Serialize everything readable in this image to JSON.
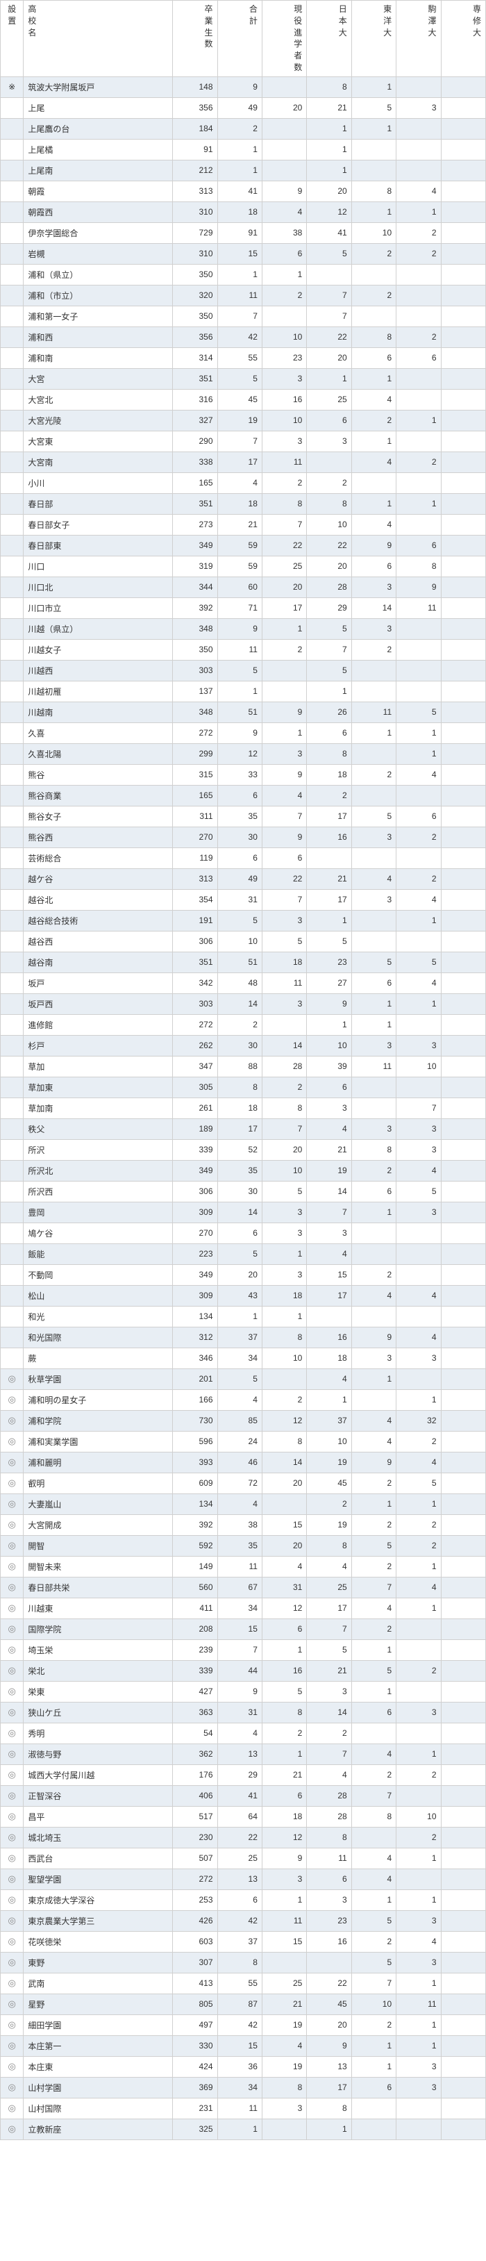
{
  "headers": [
    "設置",
    "高校名",
    "卒業生数",
    "合計",
    "現役進学者数",
    "日本大",
    "東洋大",
    "駒澤大",
    "専修大"
  ],
  "header_vertical": [
    [
      "設",
      "置"
    ],
    [
      "高",
      "校",
      "名"
    ],
    [
      "卒",
      "業",
      "生",
      "数"
    ],
    [
      "合",
      "計"
    ],
    [
      "現",
      "役",
      "進",
      "学",
      "者",
      "数"
    ],
    [
      "日",
      "本",
      "大"
    ],
    [
      "東",
      "洋",
      "大"
    ],
    [
      "駒",
      "澤",
      "大"
    ],
    [
      "専",
      "修",
      "大"
    ]
  ],
  "rows": [
    {
      "mark": "※",
      "name": "筑波大学附属坂戸",
      "grad": 148,
      "total": 9,
      "gen": "",
      "d1": 8,
      "d2": 1,
      "d3": "",
      "d4": ""
    },
    {
      "mark": "",
      "name": "上尾",
      "grad": 356,
      "total": 49,
      "gen": 20,
      "d1": 21,
      "d2": 5,
      "d3": 3,
      "d4": ""
    },
    {
      "mark": "",
      "name": "上尾鷹の台",
      "grad": 184,
      "total": 2,
      "gen": "",
      "d1": 1,
      "d2": 1,
      "d3": "",
      "d4": ""
    },
    {
      "mark": "",
      "name": "上尾橘",
      "grad": 91,
      "total": 1,
      "gen": "",
      "d1": 1,
      "d2": "",
      "d3": "",
      "d4": ""
    },
    {
      "mark": "",
      "name": "上尾南",
      "grad": 212,
      "total": 1,
      "gen": "",
      "d1": 1,
      "d2": "",
      "d3": "",
      "d4": ""
    },
    {
      "mark": "",
      "name": "朝霞",
      "grad": 313,
      "total": 41,
      "gen": 9,
      "d1": 20,
      "d2": 8,
      "d3": 4,
      "d4": ""
    },
    {
      "mark": "",
      "name": "朝霞西",
      "grad": 310,
      "total": 18,
      "gen": 4,
      "d1": 12,
      "d2": 1,
      "d3": 1,
      "d4": ""
    },
    {
      "mark": "",
      "name": "伊奈学園総合",
      "grad": 729,
      "total": 91,
      "gen": 38,
      "d1": 41,
      "d2": 10,
      "d3": 2,
      "d4": ""
    },
    {
      "mark": "",
      "name": "岩槻",
      "grad": 310,
      "total": 15,
      "gen": 6,
      "d1": 5,
      "d2": 2,
      "d3": 2,
      "d4": ""
    },
    {
      "mark": "",
      "name": "浦和（県立）",
      "grad": 350,
      "total": 1,
      "gen": 1,
      "d1": "",
      "d2": "",
      "d3": "",
      "d4": ""
    },
    {
      "mark": "",
      "name": "浦和（市立）",
      "grad": 320,
      "total": 11,
      "gen": 2,
      "d1": 7,
      "d2": 2,
      "d3": "",
      "d4": ""
    },
    {
      "mark": "",
      "name": "浦和第一女子",
      "grad": 350,
      "total": 7,
      "gen": "",
      "d1": 7,
      "d2": "",
      "d3": "",
      "d4": ""
    },
    {
      "mark": "",
      "name": "浦和西",
      "grad": 356,
      "total": 42,
      "gen": 10,
      "d1": 22,
      "d2": 8,
      "d3": 2,
      "d4": ""
    },
    {
      "mark": "",
      "name": "浦和南",
      "grad": 314,
      "total": 55,
      "gen": 23,
      "d1": 20,
      "d2": 6,
      "d3": 6,
      "d4": ""
    },
    {
      "mark": "",
      "name": "大宮",
      "grad": 351,
      "total": 5,
      "gen": 3,
      "d1": 1,
      "d2": 1,
      "d3": "",
      "d4": ""
    },
    {
      "mark": "",
      "name": "大宮北",
      "grad": 316,
      "total": 45,
      "gen": 16,
      "d1": 25,
      "d2": 4,
      "d3": "",
      "d4": ""
    },
    {
      "mark": "",
      "name": "大宮光陵",
      "grad": 327,
      "total": 19,
      "gen": 10,
      "d1": 6,
      "d2": 2,
      "d3": 1,
      "d4": ""
    },
    {
      "mark": "",
      "name": "大宮東",
      "grad": 290,
      "total": 7,
      "gen": 3,
      "d1": 3,
      "d2": 1,
      "d3": "",
      "d4": ""
    },
    {
      "mark": "",
      "name": "大宮南",
      "grad": 338,
      "total": 17,
      "gen": 11,
      "d1": "",
      "d2": 4,
      "d3": 2,
      "d4": ""
    },
    {
      "mark": "",
      "name": "小川",
      "grad": 165,
      "total": 4,
      "gen": 2,
      "d1": 2,
      "d2": "",
      "d3": "",
      "d4": ""
    },
    {
      "mark": "",
      "name": "春日部",
      "grad": 351,
      "total": 18,
      "gen": 8,
      "d1": 8,
      "d2": 1,
      "d3": 1,
      "d4": ""
    },
    {
      "mark": "",
      "name": "春日部女子",
      "grad": 273,
      "total": 21,
      "gen": 7,
      "d1": 10,
      "d2": 4,
      "d3": "",
      "d4": ""
    },
    {
      "mark": "",
      "name": "春日部東",
      "grad": 349,
      "total": 59,
      "gen": 22,
      "d1": 22,
      "d2": 9,
      "d3": 6,
      "d4": ""
    },
    {
      "mark": "",
      "name": "川口",
      "grad": 319,
      "total": 59,
      "gen": 25,
      "d1": 20,
      "d2": 6,
      "d3": 8,
      "d4": ""
    },
    {
      "mark": "",
      "name": "川口北",
      "grad": 344,
      "total": 60,
      "gen": 20,
      "d1": 28,
      "d2": 3,
      "d3": 9,
      "d4": ""
    },
    {
      "mark": "",
      "name": "川口市立",
      "grad": 392,
      "total": 71,
      "gen": 17,
      "d1": 29,
      "d2": 14,
      "d3": 11,
      "d4": ""
    },
    {
      "mark": "",
      "name": "川越（県立）",
      "grad": 348,
      "total": 9,
      "gen": 1,
      "d1": 5,
      "d2": 3,
      "d3": "",
      "d4": ""
    },
    {
      "mark": "",
      "name": "川越女子",
      "grad": 350,
      "total": 11,
      "gen": 2,
      "d1": 7,
      "d2": 2,
      "d3": "",
      "d4": ""
    },
    {
      "mark": "",
      "name": "川越西",
      "grad": 303,
      "total": 5,
      "gen": "",
      "d1": 5,
      "d2": "",
      "d3": "",
      "d4": ""
    },
    {
      "mark": "",
      "name": "川越初雁",
      "grad": 137,
      "total": 1,
      "gen": "",
      "d1": 1,
      "d2": "",
      "d3": "",
      "d4": ""
    },
    {
      "mark": "",
      "name": "川越南",
      "grad": 348,
      "total": 51,
      "gen": 9,
      "d1": 26,
      "d2": 11,
      "d3": 5,
      "d4": ""
    },
    {
      "mark": "",
      "name": "久喜",
      "grad": 272,
      "total": 9,
      "gen": 1,
      "d1": 6,
      "d2": 1,
      "d3": 1,
      "d4": ""
    },
    {
      "mark": "",
      "name": "久喜北陽",
      "grad": 299,
      "total": 12,
      "gen": 3,
      "d1": 8,
      "d2": "",
      "d3": 1,
      "d4": ""
    },
    {
      "mark": "",
      "name": "熊谷",
      "grad": 315,
      "total": 33,
      "gen": 9,
      "d1": 18,
      "d2": 2,
      "d3": 4,
      "d4": ""
    },
    {
      "mark": "",
      "name": "熊谷商業",
      "grad": 165,
      "total": 6,
      "gen": 4,
      "d1": 2,
      "d2": "",
      "d3": "",
      "d4": ""
    },
    {
      "mark": "",
      "name": "熊谷女子",
      "grad": 311,
      "total": 35,
      "gen": 7,
      "d1": 17,
      "d2": 5,
      "d3": 6,
      "d4": ""
    },
    {
      "mark": "",
      "name": "熊谷西",
      "grad": 270,
      "total": 30,
      "gen": 9,
      "d1": 16,
      "d2": 3,
      "d3": 2,
      "d4": ""
    },
    {
      "mark": "",
      "name": "芸術総合",
      "grad": 119,
      "total": 6,
      "gen": 6,
      "d1": "",
      "d2": "",
      "d3": "",
      "d4": ""
    },
    {
      "mark": "",
      "name": "越ケ谷",
      "grad": 313,
      "total": 49,
      "gen": 22,
      "d1": 21,
      "d2": 4,
      "d3": 2,
      "d4": ""
    },
    {
      "mark": "",
      "name": "越谷北",
      "grad": 354,
      "total": 31,
      "gen": 7,
      "d1": 17,
      "d2": 3,
      "d3": 4,
      "d4": ""
    },
    {
      "mark": "",
      "name": "越谷総合技術",
      "grad": 191,
      "total": 5,
      "gen": 3,
      "d1": 1,
      "d2": "",
      "d3": 1,
      "d4": ""
    },
    {
      "mark": "",
      "name": "越谷西",
      "grad": 306,
      "total": 10,
      "gen": 5,
      "d1": 5,
      "d2": "",
      "d3": "",
      "d4": ""
    },
    {
      "mark": "",
      "name": "越谷南",
      "grad": 351,
      "total": 51,
      "gen": 18,
      "d1": 23,
      "d2": 5,
      "d3": 5,
      "d4": ""
    },
    {
      "mark": "",
      "name": "坂戸",
      "grad": 342,
      "total": 48,
      "gen": 11,
      "d1": 27,
      "d2": 6,
      "d3": 4,
      "d4": ""
    },
    {
      "mark": "",
      "name": "坂戸西",
      "grad": 303,
      "total": 14,
      "gen": 3,
      "d1": 9,
      "d2": 1,
      "d3": 1,
      "d4": ""
    },
    {
      "mark": "",
      "name": "進修館",
      "grad": 272,
      "total": 2,
      "gen": "",
      "d1": 1,
      "d2": 1,
      "d3": "",
      "d4": ""
    },
    {
      "mark": "",
      "name": "杉戸",
      "grad": 262,
      "total": 30,
      "gen": 14,
      "d1": 10,
      "d2": 3,
      "d3": 3,
      "d4": ""
    },
    {
      "mark": "",
      "name": "草加",
      "grad": 347,
      "total": 88,
      "gen": 28,
      "d1": 39,
      "d2": 11,
      "d3": 10,
      "d4": ""
    },
    {
      "mark": "",
      "name": "草加東",
      "grad": 305,
      "total": 8,
      "gen": 2,
      "d1": 6,
      "d2": "",
      "d3": "",
      "d4": ""
    },
    {
      "mark": "",
      "name": "草加南",
      "grad": 261,
      "total": 18,
      "gen": 8,
      "d1": 3,
      "d2": "",
      "d3": 7,
      "d4": ""
    },
    {
      "mark": "",
      "name": "秩父",
      "grad": 189,
      "total": 17,
      "gen": 7,
      "d1": 4,
      "d2": 3,
      "d3": 3,
      "d4": ""
    },
    {
      "mark": "",
      "name": "所沢",
      "grad": 339,
      "total": 52,
      "gen": 20,
      "d1": 21,
      "d2": 8,
      "d3": 3,
      "d4": ""
    },
    {
      "mark": "",
      "name": "所沢北",
      "grad": 349,
      "total": 35,
      "gen": 10,
      "d1": 19,
      "d2": 2,
      "d3": 4,
      "d4": ""
    },
    {
      "mark": "",
      "name": "所沢西",
      "grad": 306,
      "total": 30,
      "gen": 5,
      "d1": 14,
      "d2": 6,
      "d3": 5,
      "d4": ""
    },
    {
      "mark": "",
      "name": "豊岡",
      "grad": 309,
      "total": 14,
      "gen": 3,
      "d1": 7,
      "d2": 1,
      "d3": 3,
      "d4": ""
    },
    {
      "mark": "",
      "name": "鳩ケ谷",
      "grad": 270,
      "total": 6,
      "gen": 3,
      "d1": 3,
      "d2": "",
      "d3": "",
      "d4": ""
    },
    {
      "mark": "",
      "name": "飯能",
      "grad": 223,
      "total": 5,
      "gen": 1,
      "d1": 4,
      "d2": "",
      "d3": "",
      "d4": ""
    },
    {
      "mark": "",
      "name": "不動岡",
      "grad": 349,
      "total": 20,
      "gen": 3,
      "d1": 15,
      "d2": 2,
      "d3": "",
      "d4": ""
    },
    {
      "mark": "",
      "name": "松山",
      "grad": 309,
      "total": 43,
      "gen": 18,
      "d1": 17,
      "d2": 4,
      "d3": 4,
      "d4": ""
    },
    {
      "mark": "",
      "name": "和光",
      "grad": 134,
      "total": 1,
      "gen": 1,
      "d1": "",
      "d2": "",
      "d3": "",
      "d4": ""
    },
    {
      "mark": "",
      "name": "和光国際",
      "grad": 312,
      "total": 37,
      "gen": 8,
      "d1": 16,
      "d2": 9,
      "d3": 4,
      "d4": ""
    },
    {
      "mark": "",
      "name": "蕨",
      "grad": 346,
      "total": 34,
      "gen": 10,
      "d1": 18,
      "d2": 3,
      "d3": 3,
      "d4": ""
    },
    {
      "mark": "◎",
      "name": "秋草学園",
      "grad": 201,
      "total": 5,
      "gen": "",
      "d1": 4,
      "d2": 1,
      "d3": "",
      "d4": ""
    },
    {
      "mark": "◎",
      "name": "浦和明の星女子",
      "grad": 166,
      "total": 4,
      "gen": 2,
      "d1": 1,
      "d2": "",
      "d3": 1,
      "d4": ""
    },
    {
      "mark": "◎",
      "name": "浦和学院",
      "grad": 730,
      "total": 85,
      "gen": 12,
      "d1": 37,
      "d2": 4,
      "d3": 32,
      "d4": ""
    },
    {
      "mark": "◎",
      "name": "浦和実業学園",
      "grad": 596,
      "total": 24,
      "gen": 8,
      "d1": 10,
      "d2": 4,
      "d3": 2,
      "d4": ""
    },
    {
      "mark": "◎",
      "name": "浦和麗明",
      "grad": 393,
      "total": 46,
      "gen": 14,
      "d1": 19,
      "d2": 9,
      "d3": 4,
      "d4": ""
    },
    {
      "mark": "◎",
      "name": "叡明",
      "grad": 609,
      "total": 72,
      "gen": 20,
      "d1": 45,
      "d2": 2,
      "d3": 5,
      "d4": ""
    },
    {
      "mark": "◎",
      "name": "大妻嵐山",
      "grad": 134,
      "total": 4,
      "gen": "",
      "d1": 2,
      "d2": 1,
      "d3": 1,
      "d4": ""
    },
    {
      "mark": "◎",
      "name": "大宮開成",
      "grad": 392,
      "total": 38,
      "gen": 15,
      "d1": 19,
      "d2": 2,
      "d3": 2,
      "d4": ""
    },
    {
      "mark": "◎",
      "name": "開智",
      "grad": 592,
      "total": 35,
      "gen": 20,
      "d1": 8,
      "d2": 5,
      "d3": 2,
      "d4": ""
    },
    {
      "mark": "◎",
      "name": "開智未来",
      "grad": 149,
      "total": 11,
      "gen": 4,
      "d1": 4,
      "d2": 2,
      "d3": 1,
      "d4": ""
    },
    {
      "mark": "◎",
      "name": "春日部共栄",
      "grad": 560,
      "total": 67,
      "gen": 31,
      "d1": 25,
      "d2": 7,
      "d3": 4,
      "d4": ""
    },
    {
      "mark": "◎",
      "name": "川越東",
      "grad": 411,
      "total": 34,
      "gen": 12,
      "d1": 17,
      "d2": 4,
      "d3": 1,
      "d4": ""
    },
    {
      "mark": "◎",
      "name": "国際学院",
      "grad": 208,
      "total": 15,
      "gen": 6,
      "d1": 7,
      "d2": 2,
      "d3": "",
      "d4": ""
    },
    {
      "mark": "◎",
      "name": "埼玉栄",
      "grad": 239,
      "total": 7,
      "gen": 1,
      "d1": 5,
      "d2": 1,
      "d3": "",
      "d4": ""
    },
    {
      "mark": "◎",
      "name": "栄北",
      "grad": 339,
      "total": 44,
      "gen": 16,
      "d1": 21,
      "d2": 5,
      "d3": 2,
      "d4": ""
    },
    {
      "mark": "◎",
      "name": "栄東",
      "grad": 427,
      "total": 9,
      "gen": 5,
      "d1": 3,
      "d2": 1,
      "d3": "",
      "d4": ""
    },
    {
      "mark": "◎",
      "name": "狭山ケ丘",
      "grad": 363,
      "total": 31,
      "gen": 8,
      "d1": 14,
      "d2": 6,
      "d3": 3,
      "d4": ""
    },
    {
      "mark": "◎",
      "name": "秀明",
      "grad": 54,
      "total": 4,
      "gen": 2,
      "d1": 2,
      "d2": "",
      "d3": "",
      "d4": ""
    },
    {
      "mark": "◎",
      "name": "淑徳与野",
      "grad": 362,
      "total": 13,
      "gen": 1,
      "d1": 7,
      "d2": 4,
      "d3": 1,
      "d4": ""
    },
    {
      "mark": "◎",
      "name": "城西大学付属川越",
      "grad": 176,
      "total": 29,
      "gen": 21,
      "d1": 4,
      "d2": 2,
      "d3": 2,
      "d4": ""
    },
    {
      "mark": "◎",
      "name": "正智深谷",
      "grad": 406,
      "total": 41,
      "gen": 6,
      "d1": 28,
      "d2": 7,
      "d3": "",
      "d4": ""
    },
    {
      "mark": "◎",
      "name": "昌平",
      "grad": 517,
      "total": 64,
      "gen": 18,
      "d1": 28,
      "d2": 8,
      "d3": 10,
      "d4": ""
    },
    {
      "mark": "◎",
      "name": "城北埼玉",
      "grad": 230,
      "total": 22,
      "gen": 12,
      "d1": 8,
      "d2": "",
      "d3": 2,
      "d4": ""
    },
    {
      "mark": "◎",
      "name": "西武台",
      "grad": 507,
      "total": 25,
      "gen": 9,
      "d1": 11,
      "d2": 4,
      "d3": 1,
      "d4": ""
    },
    {
      "mark": "◎",
      "name": "聖望学園",
      "grad": 272,
      "total": 13,
      "gen": 3,
      "d1": 6,
      "d2": 4,
      "d3": "",
      "d4": ""
    },
    {
      "mark": "◎",
      "name": "東京成徳大学深谷",
      "grad": 253,
      "total": 6,
      "gen": 1,
      "d1": 3,
      "d2": 1,
      "d3": 1,
      "d4": ""
    },
    {
      "mark": "◎",
      "name": "東京農業大学第三",
      "grad": 426,
      "total": 42,
      "gen": 11,
      "d1": 23,
      "d2": 5,
      "d3": 3,
      "d4": ""
    },
    {
      "mark": "◎",
      "name": "花咲徳栄",
      "grad": 603,
      "total": 37,
      "gen": 15,
      "d1": 16,
      "d2": 2,
      "d3": 4,
      "d4": ""
    },
    {
      "mark": "◎",
      "name": "東野",
      "grad": 307,
      "total": 8,
      "gen": "",
      "d1": "",
      "d2": 5,
      "d3": 3,
      "d4": ""
    },
    {
      "mark": "◎",
      "name": "武南",
      "grad": 413,
      "total": 55,
      "gen": 25,
      "d1": 22,
      "d2": 7,
      "d3": 1,
      "d4": ""
    },
    {
      "mark": "◎",
      "name": "星野",
      "grad": 805,
      "total": 87,
      "gen": 21,
      "d1": 45,
      "d2": 10,
      "d3": 11,
      "d4": ""
    },
    {
      "mark": "◎",
      "name": "細田学園",
      "grad": 497,
      "total": 42,
      "gen": 19,
      "d1": 20,
      "d2": 2,
      "d3": 1,
      "d4": ""
    },
    {
      "mark": "◎",
      "name": "本庄第一",
      "grad": 330,
      "total": 15,
      "gen": 4,
      "d1": 9,
      "d2": 1,
      "d3": 1,
      "d4": ""
    },
    {
      "mark": "◎",
      "name": "本庄東",
      "grad": 424,
      "total": 36,
      "gen": 19,
      "d1": 13,
      "d2": 1,
      "d3": 3,
      "d4": ""
    },
    {
      "mark": "◎",
      "name": "山村学園",
      "grad": 369,
      "total": 34,
      "gen": 8,
      "d1": 17,
      "d2": 6,
      "d3": 3,
      "d4": ""
    },
    {
      "mark": "◎",
      "name": "山村国際",
      "grad": 231,
      "total": 11,
      "gen": 3,
      "d1": 8,
      "d2": "",
      "d3": "",
      "d4": ""
    },
    {
      "mark": "◎",
      "name": "立教新座",
      "grad": 325,
      "total": 1,
      "gen": "",
      "d1": 1,
      "d2": "",
      "d3": "",
      "d4": ""
    }
  ]
}
